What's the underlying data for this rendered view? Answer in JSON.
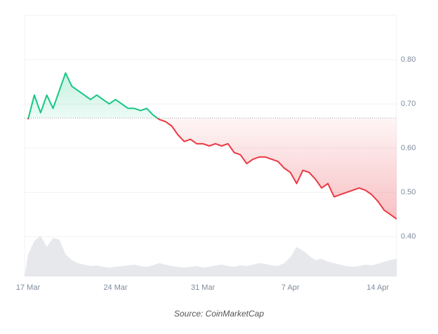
{
  "chart_data": {
    "type": "line",
    "source": "Source: CoinMarketCap",
    "categories": [
      "17 Mar",
      null,
      null,
      null,
      null,
      null,
      null,
      null,
      null,
      null,
      null,
      null,
      null,
      null,
      "24 Mar",
      null,
      null,
      null,
      null,
      null,
      null,
      null,
      null,
      null,
      null,
      null,
      null,
      null,
      "31 Mar",
      null,
      null,
      null,
      null,
      null,
      null,
      null,
      null,
      null,
      null,
      null,
      null,
      null,
      "7 Apr",
      null,
      null,
      null,
      null,
      null,
      null,
      null,
      null,
      null,
      null,
      null,
      null,
      null,
      "14 Apr",
      null,
      null,
      null
    ],
    "series": [
      {
        "values": [
          0.665,
          0.72,
          0.68,
          0.72,
          0.69,
          0.73,
          0.77,
          0.74,
          0.73,
          0.72,
          0.71,
          0.72,
          0.71,
          0.7,
          0.71,
          0.7,
          0.69,
          0.69,
          0.685,
          0.69,
          0.675,
          0.665,
          0.66,
          0.65,
          0.63,
          0.615,
          0.62,
          0.61,
          0.61,
          0.605,
          0.61,
          0.605,
          0.61,
          0.59,
          0.585,
          0.565,
          0.575,
          0.58,
          0.58,
          0.575,
          0.57,
          0.555,
          0.545,
          0.52,
          0.55,
          0.545,
          0.53,
          0.51,
          0.52,
          0.49,
          0.495,
          0.5,
          0.505,
          0.51,
          0.505,
          0.495,
          0.48,
          0.46,
          0.45,
          0.44
        ]
      }
    ],
    "up_color": "#16c784",
    "down_color": "#ea3943",
    "baseline": 0.668,
    "volume": {
      "color": "#e6e8ec",
      "values": [
        30,
        48,
        55,
        40,
        52,
        50,
        30,
        22,
        18,
        16,
        14,
        15,
        13,
        12,
        13,
        14,
        15,
        16,
        14,
        13,
        15,
        18,
        16,
        14,
        13,
        12,
        13,
        14,
        12,
        13,
        15,
        16,
        14,
        13,
        15,
        14,
        16,
        18,
        17,
        15,
        14,
        18,
        26,
        40,
        35,
        28,
        22,
        24,
        20,
        18,
        16,
        14,
        13,
        14,
        16,
        15,
        17,
        20,
        22,
        24
      ]
    },
    "ylim": [
      0.31,
      0.9
    ],
    "yticks": [
      {
        "value": 0.4,
        "label": "0.40"
      },
      {
        "value": 0.5,
        "label": "0.50"
      },
      {
        "value": 0.6,
        "label": "0.60"
      },
      {
        "value": 0.7,
        "label": "0.70"
      },
      {
        "value": 0.8,
        "label": "0.80"
      }
    ],
    "grid": true
  }
}
